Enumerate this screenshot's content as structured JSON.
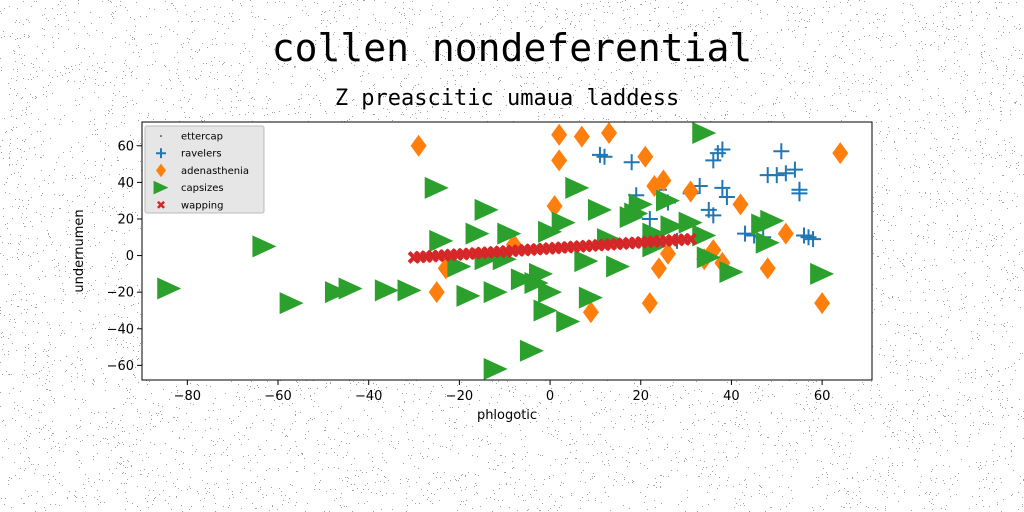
{
  "figure": {
    "title": "collen nondeferential"
  },
  "chart_data": {
    "type": "scatter",
    "title": "Z preascitic umaua laddess",
    "xlabel": "phlogotic",
    "ylabel": "undernumen",
    "xlim": [
      -90,
      71
    ],
    "ylim": [
      -68,
      73
    ],
    "xticks": [
      -80,
      -60,
      -40,
      -20,
      0,
      20,
      40,
      60
    ],
    "yticks": [
      -60,
      -40,
      -20,
      0,
      20,
      40,
      60
    ],
    "grid": false,
    "legend_position": "upper-left",
    "series": [
      {
        "name": "ettercap",
        "marker": "point",
        "color": "#444444",
        "points": []
      },
      {
        "name": "ravelers",
        "marker": "plus",
        "color": "#1f77b4",
        "points": [
          [
            11,
            55
          ],
          [
            12,
            54
          ],
          [
            18,
            51
          ],
          [
            19,
            33
          ],
          [
            24,
            36
          ],
          [
            26,
            29
          ],
          [
            31,
            34
          ],
          [
            33,
            38
          ],
          [
            35,
            25
          ],
          [
            36,
            22
          ],
          [
            36,
            52
          ],
          [
            37,
            56
          ],
          [
            38,
            58
          ],
          [
            38,
            37
          ],
          [
            39,
            32
          ],
          [
            43,
            12
          ],
          [
            47,
            10
          ],
          [
            48,
            44
          ],
          [
            50,
            44
          ],
          [
            51,
            57
          ],
          [
            52,
            45
          ],
          [
            54,
            47
          ],
          [
            55,
            34
          ],
          [
            55,
            36
          ],
          [
            56,
            11
          ],
          [
            57,
            10
          ],
          [
            58,
            9
          ],
          [
            45,
            11
          ],
          [
            28,
            8
          ],
          [
            22,
            20
          ]
        ]
      },
      {
        "name": "adenasthenia",
        "marker": "diamond",
        "color": "#ff7f0e",
        "points": [
          [
            -29,
            60
          ],
          [
            -25,
            -20
          ],
          [
            -23,
            -7
          ],
          [
            -8,
            6
          ],
          [
            1,
            27
          ],
          [
            2,
            66
          ],
          [
            2,
            52
          ],
          [
            7,
            65
          ],
          [
            9,
            -31
          ],
          [
            13,
            67
          ],
          [
            21,
            54
          ],
          [
            22,
            -26
          ],
          [
            23,
            38
          ],
          [
            24,
            -7
          ],
          [
            25,
            41
          ],
          [
            26,
            1
          ],
          [
            31,
            35
          ],
          [
            34,
            -2
          ],
          [
            36,
            3
          ],
          [
            38,
            -4
          ],
          [
            42,
            28
          ],
          [
            48,
            -7
          ],
          [
            52,
            12
          ],
          [
            60,
            -26
          ],
          [
            64,
            56
          ]
        ]
      },
      {
        "name": "capsizes",
        "marker": "triangle-right",
        "color": "#2ca02c",
        "points": [
          [
            -84,
            -18
          ],
          [
            -63,
            5
          ],
          [
            -57,
            -26
          ],
          [
            -47,
            -20
          ],
          [
            -44,
            -18
          ],
          [
            -36,
            -19
          ],
          [
            -31,
            -19
          ],
          [
            -25,
            37
          ],
          [
            -24,
            8
          ],
          [
            -20,
            -6
          ],
          [
            -18,
            -22
          ],
          [
            -16,
            12
          ],
          [
            -14,
            25
          ],
          [
            -14,
            -2
          ],
          [
            -12,
            -20
          ],
          [
            -12,
            -62
          ],
          [
            -10,
            -2
          ],
          [
            -9,
            12
          ],
          [
            -6,
            -13
          ],
          [
            -4,
            -52
          ],
          [
            -3,
            -15
          ],
          [
            -2,
            -10
          ],
          [
            -1,
            -30
          ],
          [
            0,
            -20
          ],
          [
            0,
            13
          ],
          [
            3,
            18
          ],
          [
            4,
            -36
          ],
          [
            6,
            37
          ],
          [
            8,
            -3
          ],
          [
            9,
            -23
          ],
          [
            11,
            25
          ],
          [
            13,
            9
          ],
          [
            15,
            -6
          ],
          [
            18,
            21
          ],
          [
            19,
            23
          ],
          [
            20,
            28
          ],
          [
            23,
            12
          ],
          [
            23,
            5
          ],
          [
            26,
            30
          ],
          [
            27,
            16
          ],
          [
            31,
            18
          ],
          [
            34,
            11
          ],
          [
            34,
            67
          ],
          [
            35,
            -1
          ],
          [
            40,
            -9
          ],
          [
            47,
            17
          ],
          [
            48,
            7
          ],
          [
            49,
            19
          ],
          [
            60,
            -10
          ]
        ]
      },
      {
        "name": "wapping",
        "marker": "x",
        "color": "#d62728",
        "line": {
          "x_start": -30,
          "y_start": -1,
          "x_end": 31,
          "y_end": 9,
          "count": 46
        }
      }
    ]
  }
}
